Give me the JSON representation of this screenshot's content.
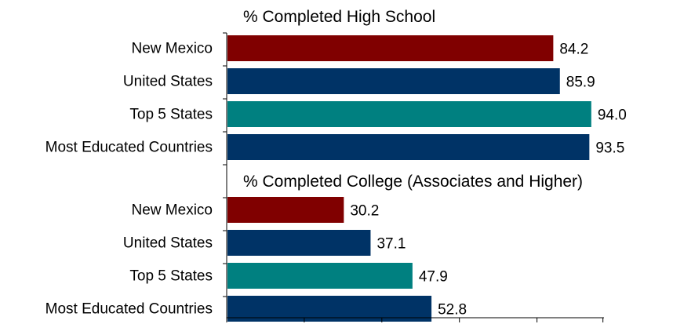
{
  "chart_data": {
    "type": "bar",
    "orientation": "horizontal",
    "xlim": [
      0,
      100
    ],
    "grid": false,
    "legend": "none",
    "sections": [
      {
        "title": "% Completed High School",
        "categories": [
          "New Mexico",
          "United States",
          "Top 5 States",
          "Most Educated Countries"
        ],
        "values": [
          84.2,
          85.9,
          94.0,
          93.5
        ],
        "value_labels": [
          "84.2",
          "85.9",
          "94.0",
          "93.5"
        ],
        "colors": [
          "#800000",
          "#003366",
          "#008080",
          "#003366"
        ]
      },
      {
        "title": "% Completed College (Associates and Higher)",
        "categories": [
          "New Mexico",
          "United States",
          "Top 5 States",
          "Most Educated Countries"
        ],
        "values": [
          30.2,
          37.1,
          47.9,
          52.8
        ],
        "value_labels": [
          "30.2",
          "37.1",
          "47.9",
          "52.8"
        ],
        "colors": [
          "#800000",
          "#003366",
          "#008080",
          "#003366"
        ]
      }
    ]
  }
}
